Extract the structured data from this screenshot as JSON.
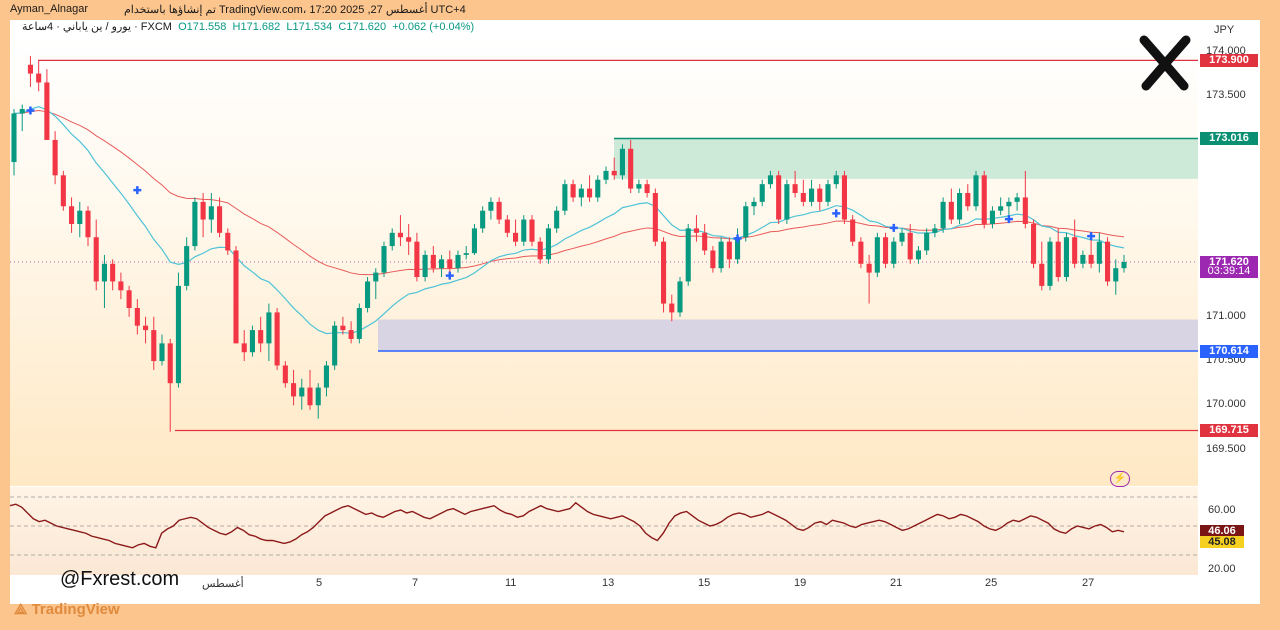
{
  "header": {
    "author": "Ayman_Alnagar",
    "published": "تم إنشاؤها باستخدام TradingView.com، 17:20 2025 ,27 أغسطس UTC+4",
    "symbol": "يورو / ين ياباني · 4ساعة · FXCM",
    "open": "O171.558",
    "high": "H171.682",
    "low": "L171.534",
    "close": "C171.620",
    "change": "+0.062 (+0.04%)"
  },
  "axis": {
    "currency": "JPY",
    "y_ticks": [
      "174.000",
      "173.500",
      "171.000",
      "170.500",
      "170.000",
      "169.500"
    ],
    "x_ticks": [
      "أغسطس",
      "5",
      "7",
      "11",
      "13",
      "15",
      "19",
      "21",
      "25",
      "27"
    ]
  },
  "levels": {
    "resistance_top": "173.900",
    "zone_top": "173.016",
    "current": "171.620",
    "countdown": "03:39:14",
    "support": "170.614",
    "low": "169.715"
  },
  "rsi": {
    "ticks": [
      "60.00",
      "20.00"
    ],
    "value1": "46.06",
    "value2": "45.08"
  },
  "watermark": "@Fxrest.com",
  "brand": "TradingView",
  "colors": {
    "bull": "#089981",
    "bear": "#f23645",
    "ema_fast": "#4fc3d7",
    "ema_slow": "#e85a5a",
    "resistance_zone": "#cde9d8",
    "support_zone": "#d9d4e4",
    "support_line": "#2962ff",
    "rsi_line": "#8b1a1a"
  },
  "chart_data": {
    "type": "candlestick",
    "symbol": "EUR/JPY",
    "timeframe": "4h",
    "ylim": [
      169.3,
      174.2
    ],
    "candles": [
      [
        172.75,
        173.35,
        172.6,
        173.3
      ],
      [
        173.3,
        173.4,
        173.1,
        173.35
      ],
      [
        173.85,
        173.95,
        173.6,
        173.75
      ],
      [
        173.75,
        173.9,
        173.55,
        173.65
      ],
      [
        173.65,
        173.8,
        173.0,
        173.0
      ],
      [
        173.0,
        173.1,
        172.5,
        172.6
      ],
      [
        172.6,
        172.65,
        172.2,
        172.25
      ],
      [
        172.25,
        172.35,
        171.95,
        172.05
      ],
      [
        172.05,
        172.3,
        171.9,
        172.2
      ],
      [
        172.2,
        172.25,
        171.8,
        171.9
      ],
      [
        171.9,
        172.1,
        171.3,
        171.4
      ],
      [
        171.4,
        171.7,
        171.1,
        171.6
      ],
      [
        171.6,
        171.65,
        171.3,
        171.4
      ],
      [
        171.4,
        171.5,
        171.2,
        171.3
      ],
      [
        171.3,
        171.35,
        171.0,
        171.1
      ],
      [
        171.1,
        171.2,
        170.8,
        170.9
      ],
      [
        170.9,
        171.0,
        170.7,
        170.85
      ],
      [
        170.85,
        171.0,
        170.4,
        170.5
      ],
      [
        170.5,
        170.8,
        170.45,
        170.7
      ],
      [
        170.7,
        170.75,
        169.7,
        170.25
      ],
      [
        170.25,
        171.5,
        170.2,
        171.35
      ],
      [
        171.35,
        171.9,
        171.3,
        171.8
      ],
      [
        171.8,
        172.35,
        171.75,
        172.3
      ],
      [
        172.3,
        172.4,
        171.9,
        172.1
      ],
      [
        172.1,
        172.4,
        171.95,
        172.25
      ],
      [
        172.25,
        172.35,
        171.9,
        171.95
      ],
      [
        171.95,
        172.0,
        171.7,
        171.75
      ],
      [
        171.75,
        171.8,
        170.7,
        170.7
      ],
      [
        170.7,
        170.85,
        170.5,
        170.6
      ],
      [
        170.6,
        170.9,
        170.55,
        170.85
      ],
      [
        170.85,
        171.0,
        170.6,
        170.7
      ],
      [
        170.7,
        171.15,
        170.5,
        171.05
      ],
      [
        171.05,
        171.1,
        170.4,
        170.45
      ],
      [
        170.45,
        170.5,
        170.2,
        170.25
      ],
      [
        170.25,
        170.4,
        170.0,
        170.1
      ],
      [
        170.1,
        170.3,
        169.95,
        170.2
      ],
      [
        170.2,
        170.4,
        169.95,
        170.0
      ],
      [
        170.0,
        170.25,
        169.85,
        170.2
      ],
      [
        170.2,
        170.5,
        170.1,
        170.45
      ],
      [
        170.45,
        170.95,
        170.4,
        170.9
      ],
      [
        170.9,
        171.0,
        170.8,
        170.85
      ],
      [
        170.85,
        170.95,
        170.7,
        170.75
      ],
      [
        170.75,
        171.15,
        170.7,
        171.1
      ],
      [
        171.1,
        171.45,
        171.05,
        171.4
      ],
      [
        171.4,
        171.55,
        171.2,
        171.5
      ],
      [
        171.5,
        171.85,
        171.45,
        171.8
      ],
      [
        171.8,
        172.0,
        171.75,
        171.95
      ],
      [
        171.95,
        172.15,
        171.8,
        171.9
      ],
      [
        171.9,
        172.05,
        171.7,
        171.85
      ],
      [
        171.85,
        171.95,
        171.4,
        171.45
      ],
      [
        171.45,
        171.75,
        171.4,
        171.7
      ],
      [
        171.7,
        171.8,
        171.5,
        171.55
      ],
      [
        171.55,
        171.7,
        171.45,
        171.65
      ],
      [
        171.65,
        171.75,
        171.5,
        171.55
      ],
      [
        171.55,
        171.75,
        171.5,
        171.7
      ],
      [
        171.7,
        171.8,
        171.65,
        171.72
      ],
      [
        171.72,
        172.05,
        171.7,
        172.0
      ],
      [
        172.0,
        172.25,
        171.95,
        172.2
      ],
      [
        172.2,
        172.35,
        172.1,
        172.3
      ],
      [
        172.3,
        172.35,
        172.05,
        172.1
      ],
      [
        172.1,
        172.15,
        171.9,
        171.95
      ],
      [
        171.95,
        172.1,
        171.8,
        171.85
      ],
      [
        171.85,
        172.15,
        171.8,
        172.1
      ],
      [
        172.1,
        172.15,
        171.8,
        171.85
      ],
      [
        171.85,
        171.9,
        171.6,
        171.65
      ],
      [
        171.65,
        172.05,
        171.6,
        172.0
      ],
      [
        172.0,
        172.25,
        171.95,
        172.2
      ],
      [
        172.2,
        172.55,
        172.15,
        172.5
      ],
      [
        172.5,
        172.55,
        172.3,
        172.35
      ],
      [
        172.35,
        172.5,
        172.25,
        172.45
      ],
      [
        172.45,
        172.6,
        172.3,
        172.35
      ],
      [
        172.35,
        172.6,
        172.3,
        172.55
      ],
      [
        172.55,
        172.7,
        172.5,
        172.65
      ],
      [
        172.65,
        172.8,
        172.55,
        172.6
      ],
      [
        172.6,
        172.95,
        172.55,
        172.9
      ],
      [
        172.9,
        173.0,
        172.4,
        172.45
      ],
      [
        172.45,
        172.55,
        172.4,
        172.5
      ],
      [
        172.5,
        172.55,
        172.35,
        172.4
      ],
      [
        172.4,
        172.45,
        171.8,
        171.85
      ],
      [
        171.85,
        171.9,
        171.05,
        171.15
      ],
      [
        171.15,
        171.25,
        170.95,
        171.05
      ],
      [
        171.05,
        171.45,
        171.0,
        171.4
      ],
      [
        171.4,
        172.05,
        171.35,
        172.0
      ],
      [
        172.0,
        172.15,
        171.85,
        171.95
      ],
      [
        171.95,
        172.05,
        171.7,
        171.75
      ],
      [
        171.75,
        171.8,
        171.5,
        171.55
      ],
      [
        171.55,
        171.9,
        171.5,
        171.85
      ],
      [
        171.85,
        171.9,
        171.55,
        171.65
      ],
      [
        171.65,
        172.0,
        171.6,
        171.9
      ],
      [
        171.9,
        172.3,
        171.85,
        172.25
      ],
      [
        172.25,
        172.35,
        172.15,
        172.3
      ],
      [
        172.3,
        172.55,
        172.25,
        172.5
      ],
      [
        172.5,
        172.65,
        172.45,
        172.6
      ],
      [
        172.6,
        172.65,
        172.05,
        172.1
      ],
      [
        172.1,
        172.55,
        172.05,
        172.5
      ],
      [
        172.5,
        172.65,
        172.35,
        172.4
      ],
      [
        172.4,
        172.55,
        172.25,
        172.3
      ],
      [
        172.3,
        172.55,
        172.25,
        172.45
      ],
      [
        172.45,
        172.5,
        172.2,
        172.3
      ],
      [
        172.3,
        172.55,
        172.25,
        172.5
      ],
      [
        172.5,
        172.65,
        172.45,
        172.6
      ],
      [
        172.6,
        172.65,
        172.05,
        172.1
      ],
      [
        172.1,
        172.15,
        171.8,
        171.85
      ],
      [
        171.85,
        171.9,
        171.55,
        171.6
      ],
      [
        171.6,
        171.7,
        171.15,
        171.5
      ],
      [
        171.5,
        171.95,
        171.45,
        171.9
      ],
      [
        171.9,
        171.95,
        171.55,
        171.6
      ],
      [
        171.6,
        171.9,
        171.55,
        171.85
      ],
      [
        171.85,
        172.0,
        171.8,
        171.95
      ],
      [
        171.95,
        172.05,
        171.6,
        171.65
      ],
      [
        171.65,
        171.8,
        171.6,
        171.75
      ],
      [
        171.75,
        172.0,
        171.7,
        171.95
      ],
      [
        171.95,
        172.05,
        171.9,
        172.0
      ],
      [
        172.0,
        172.35,
        171.95,
        172.3
      ],
      [
        172.3,
        172.45,
        172.05,
        172.1
      ],
      [
        172.1,
        172.45,
        172.05,
        172.4
      ],
      [
        172.4,
        172.5,
        172.2,
        172.25
      ],
      [
        172.25,
        172.65,
        172.2,
        172.6
      ],
      [
        172.6,
        172.65,
        172.0,
        172.05
      ],
      [
        172.05,
        172.25,
        172.0,
        172.2
      ],
      [
        172.2,
        172.35,
        172.15,
        172.25
      ],
      [
        172.25,
        172.35,
        172.15,
        172.3
      ],
      [
        172.3,
        172.4,
        172.2,
        172.35
      ],
      [
        172.35,
        172.65,
        172.0,
        172.05
      ],
      [
        172.05,
        172.1,
        171.55,
        171.6
      ],
      [
        171.6,
        171.85,
        171.3,
        171.35
      ],
      [
        171.35,
        171.9,
        171.3,
        171.85
      ],
      [
        171.85,
        172.0,
        171.4,
        171.45
      ],
      [
        171.45,
        171.95,
        171.4,
        171.9
      ],
      [
        171.9,
        172.1,
        171.55,
        171.6
      ],
      [
        171.6,
        171.75,
        171.55,
        171.7
      ],
      [
        171.7,
        171.9,
        171.55,
        171.6
      ],
      [
        171.6,
        171.95,
        171.5,
        171.85
      ],
      [
        171.85,
        171.9,
        171.35,
        171.4
      ],
      [
        171.4,
        171.65,
        171.25,
        171.55
      ],
      [
        171.55,
        171.7,
        171.5,
        171.62
      ]
    ],
    "rsi": [
      64,
      65,
      63,
      59,
      55,
      53,
      54,
      52,
      50,
      49,
      48,
      47,
      46,
      45,
      43,
      42,
      41,
      40,
      38,
      37,
      36,
      35,
      37,
      38,
      36,
      35,
      45,
      48,
      50,
      54,
      55,
      56,
      55,
      52,
      49,
      47,
      45,
      44,
      46,
      49,
      47,
      44,
      43,
      41,
      40,
      40,
      39,
      38,
      39,
      41,
      44,
      46,
      49,
      53,
      57,
      59,
      61,
      63,
      64,
      62,
      60,
      58,
      59,
      57,
      56,
      58,
      60,
      61,
      59,
      60,
      58,
      56,
      55,
      57,
      59,
      61,
      62,
      60,
      58,
      60,
      61,
      62,
      63,
      64,
      61,
      59,
      58,
      56,
      57,
      60,
      62,
      64,
      62,
      61,
      60,
      61,
      62,
      66,
      63,
      60,
      58,
      57,
      56,
      55,
      56,
      57,
      55,
      53,
      50,
      45,
      42,
      40,
      45,
      52,
      57,
      59,
      60,
      57,
      54,
      52,
      50,
      51,
      53,
      56,
      58,
      59,
      58,
      56,
      57,
      58,
      60,
      58,
      56,
      54,
      51,
      48,
      47,
      49,
      52,
      53,
      51,
      54,
      53,
      52,
      50,
      49,
      51,
      52,
      53,
      54,
      53,
      51,
      49,
      47,
      48,
      50,
      52,
      54,
      56,
      58,
      57,
      55,
      56,
      58,
      57,
      55,
      53,
      50,
      48,
      47,
      49,
      52,
      54,
      53,
      55,
      57,
      56,
      54,
      52,
      48,
      46,
      45,
      48,
      50,
      49,
      48,
      50,
      51,
      49,
      46,
      47,
      46
    ],
    "levels": [
      173.9,
      173.016,
      172.56,
      171.62,
      170.97,
      170.614,
      169.715
    ]
  }
}
